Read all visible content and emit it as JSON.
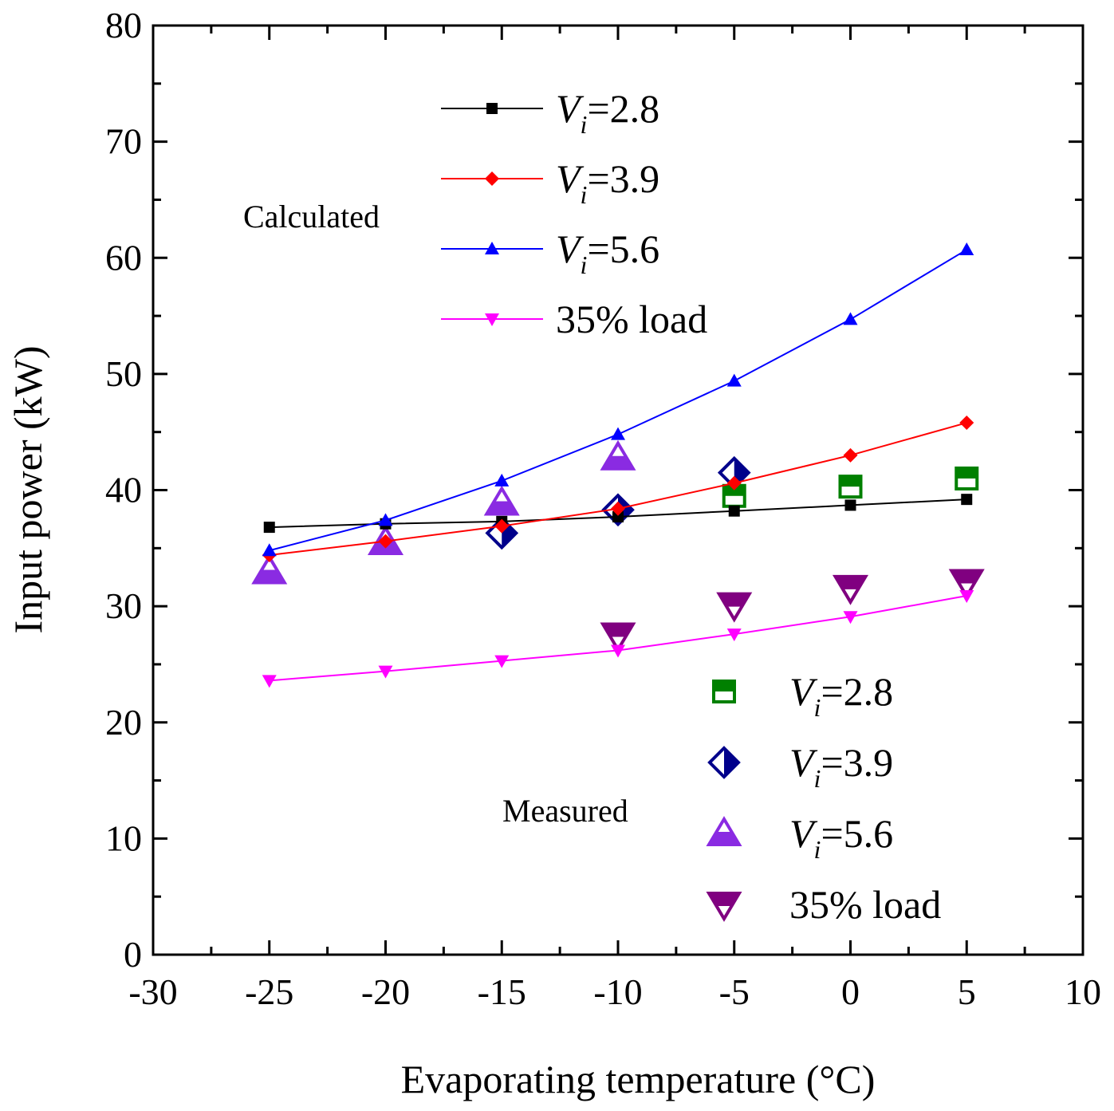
{
  "chart_data": {
    "type": "line",
    "xlabel": "Evaporating temperature (°C)",
    "ylabel": "Input power (kW)",
    "xlim": [
      -30,
      10
    ],
    "ylim": [
      0,
      80
    ],
    "xticks": [
      -30,
      -25,
      -20,
      -15,
      -10,
      -5,
      0,
      5,
      10
    ],
    "yticks": [
      0,
      10,
      20,
      30,
      40,
      50,
      60,
      70,
      80
    ],
    "grid": false,
    "calculated_label": "Calculated",
    "measured_label": "Measured",
    "series": [
      {
        "group": "calculated",
        "name": "Vi=2.8",
        "prefix": "V",
        "sub": "i",
        "suffix": "=2.8",
        "color": "#000000",
        "marker": "square",
        "x": [
          -25,
          -20,
          -15,
          -10,
          -5,
          0,
          5
        ],
        "values": [
          36.8,
          37.1,
          37.3,
          37.7,
          38.2,
          38.7,
          39.2
        ]
      },
      {
        "group": "calculated",
        "name": "Vi=3.9",
        "prefix": "V",
        "sub": "i",
        "suffix": "=3.9",
        "color": "#ff0000",
        "marker": "diamond",
        "x": [
          -25,
          -20,
          -15,
          -10,
          -5,
          0,
          5
        ],
        "values": [
          34.4,
          35.6,
          36.9,
          38.4,
          40.6,
          43.0,
          45.8
        ]
      },
      {
        "group": "calculated",
        "name": "Vi=5.6",
        "prefix": "V",
        "sub": "i",
        "suffix": "=5.6",
        "color": "#0000ff",
        "marker": "triangle-up",
        "x": [
          -25,
          -20,
          -15,
          -10,
          -5,
          0,
          5
        ],
        "values": [
          34.8,
          37.4,
          40.8,
          44.8,
          49.4,
          54.7,
          60.7
        ]
      },
      {
        "group": "calculated",
        "name": "35% load",
        "prefix": "",
        "sub": "",
        "suffix": "35% load",
        "color": "#ff00ff",
        "marker": "triangle-down",
        "x": [
          -25,
          -20,
          -15,
          -10,
          -5,
          0,
          5
        ],
        "values": [
          23.6,
          24.4,
          25.3,
          26.2,
          27.6,
          29.1,
          30.9
        ]
      },
      {
        "group": "measured",
        "name": "Vi=2.8",
        "prefix": "V",
        "sub": "i",
        "suffix": "=2.8",
        "color": "#008000",
        "marker": "square-half",
        "x": [
          -5,
          0,
          5
        ],
        "values": [
          39.5,
          40.3,
          41.0
        ]
      },
      {
        "group": "measured",
        "name": "Vi=3.9",
        "prefix": "V",
        "sub": "i",
        "suffix": "=3.9",
        "color": "#00008b",
        "marker": "diamond-half",
        "x": [
          -15,
          -10,
          -5
        ],
        "values": [
          36.3,
          38.3,
          41.5
        ]
      },
      {
        "group": "measured",
        "name": "Vi=5.6",
        "prefix": "V",
        "sub": "i",
        "suffix": "=5.6",
        "color": "#8a2be2",
        "marker": "triangle-up-half",
        "x": [
          -25,
          -20,
          -15,
          -10
        ],
        "values": [
          33.0,
          35.5,
          38.9,
          42.8
        ]
      },
      {
        "group": "measured",
        "name": "35% load",
        "prefix": "",
        "sub": "",
        "suffix": "35% load",
        "color": "#800080",
        "marker": "triangle-down-half",
        "x": [
          -10,
          -5,
          0,
          5
        ],
        "values": [
          27.5,
          30.1,
          31.6,
          32.1
        ]
      }
    ]
  }
}
